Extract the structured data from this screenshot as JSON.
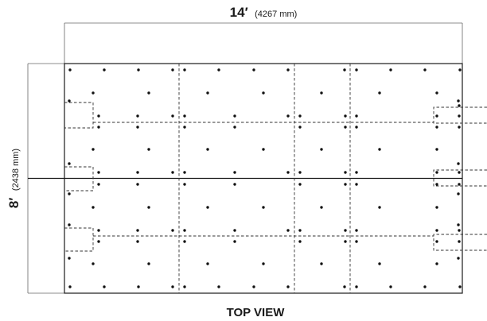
{
  "width_label": {
    "main": "14′",
    "sub": "(4267 mm)"
  },
  "height_label": {
    "main": "8′",
    "sub": "(2438 mm)"
  },
  "caption": "TOP VIEW"
}
